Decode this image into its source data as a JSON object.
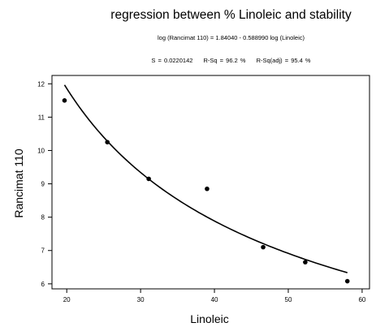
{
  "chart_data": {
    "type": "scatter",
    "title": "regression between % Linoleic and stability",
    "equation": "log (Rancimat 110) = 1.84040 - 0.588990 log (Linoleic)",
    "stats": {
      "s": "S = 0.0220142",
      "r_sq": "R-Sq = 96.2 %",
      "r_sq_adj": "R-Sq(adj) = 95.4 %"
    },
    "xlabel": "Linoleic",
    "ylabel": "Rancimat 110",
    "xlim": [
      18,
      61
    ],
    "ylim": [
      5.85,
      12.25
    ],
    "xticks": [
      20,
      30,
      40,
      50,
      60
    ],
    "yticks": [
      6,
      7,
      8,
      9,
      10,
      11,
      12
    ],
    "series": [
      {
        "type": "scatter",
        "x": [
          19.7,
          25.5,
          31.1,
          39.0,
          46.6,
          52.3,
          58.0
        ],
        "y": [
          11.5,
          10.25,
          9.15,
          8.85,
          7.1,
          6.65,
          6.08
        ]
      }
    ],
    "fit": {
      "intercept": 1.8404,
      "slope": -0.58899,
      "x_range": [
        19.7,
        58.0
      ]
    },
    "grid": false
  }
}
